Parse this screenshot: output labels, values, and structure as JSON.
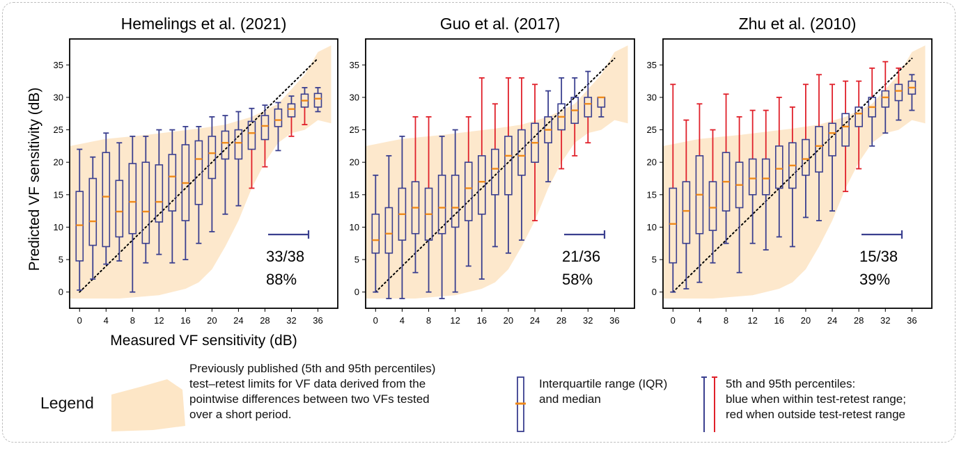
{
  "colors": {
    "box": "#3a3f8f",
    "median": "#f08a1a",
    "whisker_in": "#3a3f8f",
    "whisker_out": "#e0202a",
    "band": "#fde6c6",
    "frame": "#000000"
  },
  "shared": {
    "xlabel": "Measured VF sensitivity (dB)",
    "ylabel": "Predicted VF sensitivity (dB)",
    "xticks": [
      0,
      4,
      8,
      12,
      16,
      20,
      24,
      28,
      32,
      36
    ],
    "yticks": [
      0,
      5,
      10,
      15,
      20,
      25,
      30,
      35
    ],
    "xlim": [
      -1.5,
      39
    ],
    "ylim": [
      -2.5,
      39
    ]
  },
  "chart_data": [
    {
      "type": "box",
      "title": "Hemelings et al. (2021)",
      "x": [
        0,
        2,
        4,
        6,
        8,
        10,
        12,
        14,
        16,
        18,
        20,
        22,
        24,
        26,
        28,
        30,
        32,
        34,
        36
      ],
      "q1": [
        4.8,
        7.2,
        7,
        8.5,
        9,
        7.5,
        10.8,
        12.5,
        11,
        13.5,
        17.5,
        20.5,
        20.5,
        22,
        23.5,
        25.5,
        27,
        28.5,
        28.5
      ],
      "median": [
        10.3,
        10.9,
        14.7,
        12.4,
        13.9,
        12.4,
        13.9,
        17.8,
        16.8,
        20.5,
        21.4,
        23,
        23,
        24.5,
        25.6,
        26.5,
        28.2,
        29.5,
        29.8
      ],
      "q3": [
        15.5,
        17.5,
        21.5,
        17.2,
        19.8,
        20,
        19.6,
        21.2,
        22.7,
        23.3,
        24,
        24.8,
        25,
        26.3,
        27.2,
        28.2,
        29,
        30.5,
        30.6
      ],
      "lower": [
        0.3,
        2,
        4.3,
        4.8,
        0,
        4.5,
        5.8,
        4.5,
        5,
        7.5,
        9.3,
        12,
        13.3,
        16,
        19.3,
        21.8,
        24,
        25.8,
        27.8
      ],
      "upper": [
        22,
        20.8,
        24.5,
        23,
        24,
        24,
        25,
        25,
        25.5,
        25.5,
        27,
        27.2,
        27.8,
        28.3,
        28.8,
        29.2,
        30.2,
        31.5,
        31.5
      ],
      "lower_out": [
        false,
        false,
        false,
        false,
        false,
        false,
        false,
        false,
        false,
        false,
        false,
        false,
        false,
        true,
        true,
        false,
        true,
        true,
        false
      ],
      "upper_out": [
        false,
        false,
        false,
        false,
        false,
        false,
        false,
        false,
        false,
        false,
        false,
        false,
        false,
        false,
        false,
        false,
        false,
        false,
        false
      ],
      "score": "33/38",
      "percent": "88%"
    },
    {
      "type": "box",
      "title": "Guo et al. (2017)",
      "x": [
        0,
        2,
        4,
        6,
        8,
        10,
        12,
        14,
        16,
        18,
        20,
        22,
        24,
        26,
        28,
        30,
        32,
        34
      ],
      "q1": [
        6,
        6,
        8,
        9,
        8,
        9,
        10,
        11,
        12,
        15,
        15,
        18,
        20,
        23,
        25,
        26,
        27,
        28.5
      ],
      "median": [
        8,
        9,
        12,
        13,
        12,
        13,
        13,
        16,
        17,
        19,
        21,
        21,
        23,
        25,
        27,
        28,
        29,
        30
      ],
      "q3": [
        12,
        13,
        16,
        17,
        16,
        18,
        18,
        20,
        21,
        22,
        24,
        25,
        26,
        27,
        29,
        30,
        30,
        30
      ],
      "lower": [
        0,
        -1,
        -1,
        3,
        0,
        -1,
        0,
        4,
        2,
        7,
        6,
        8,
        11,
        17,
        19,
        21,
        23,
        27
      ],
      "upper": [
        18,
        21,
        24,
        27,
        27,
        24,
        25,
        27,
        33,
        29,
        33,
        33,
        32,
        31,
        33,
        33,
        34,
        30
      ],
      "lower_out": [
        false,
        false,
        false,
        false,
        false,
        false,
        false,
        false,
        false,
        false,
        false,
        false,
        true,
        false,
        true,
        true,
        true,
        false
      ],
      "upper_out": [
        false,
        false,
        false,
        true,
        true,
        false,
        false,
        true,
        true,
        true,
        true,
        true,
        true,
        false,
        false,
        false,
        false,
        false
      ],
      "score": "21/36",
      "percent": "58%"
    },
    {
      "type": "box",
      "title": "Zhu et al. (2010)",
      "x": [
        0,
        2,
        4,
        6,
        8,
        10,
        12,
        14,
        16,
        18,
        20,
        22,
        24,
        26,
        28,
        30,
        32,
        34,
        36
      ],
      "q1": [
        4.5,
        7.5,
        9,
        9.5,
        12.5,
        13,
        15,
        15,
        16,
        16,
        18,
        18.5,
        21,
        22.5,
        25.5,
        27,
        28.5,
        29.5,
        30.5
      ],
      "median": [
        10.5,
        12.5,
        15,
        13,
        17,
        16.5,
        17.5,
        17.5,
        19,
        19.5,
        20.5,
        22.5,
        24.5,
        25.5,
        27.5,
        28.5,
        30,
        31,
        31.5
      ],
      "q3": [
        16,
        17,
        21,
        17,
        21.5,
        20,
        20.5,
        20.5,
        22.5,
        23,
        23.5,
        25.5,
        26,
        27.5,
        28.5,
        30,
        31,
        32,
        32.5
      ],
      "lower": [
        0,
        0.5,
        1.5,
        4.5,
        7.5,
        3,
        7.5,
        6.5,
        8.5,
        7,
        11.5,
        11,
        12.5,
        15.5,
        19,
        22.5,
        24.5,
        26.5,
        28
      ],
      "upper": [
        32,
        26.5,
        29,
        25,
        30.5,
        27,
        28,
        28,
        30,
        28.5,
        32,
        33.5,
        32,
        32.5,
        32.5,
        34.5,
        35.5,
        34.5,
        33.5
      ],
      "lower_out": [
        false,
        false,
        false,
        false,
        false,
        false,
        false,
        false,
        false,
        false,
        false,
        false,
        false,
        true,
        true,
        false,
        false,
        false,
        false
      ],
      "upper_out": [
        true,
        true,
        true,
        true,
        true,
        true,
        true,
        true,
        true,
        true,
        true,
        true,
        true,
        true,
        true,
        true,
        true,
        true,
        false
      ],
      "score": "15/38",
      "percent": "39%"
    }
  ],
  "legend": {
    "title": "Legend",
    "band_text": [
      "Previously published (5th and 95th percentiles)",
      "test–retest limits for VF data derived from the",
      "pointwise differences between two VFs tested",
      "over a short period."
    ],
    "box_text": [
      "Interquartile range (IQR)",
      "and median"
    ],
    "whisker_text": [
      "5th and 95th percentiles:",
      "blue when within test-retest range;",
      "red when outside test-retest range"
    ]
  }
}
